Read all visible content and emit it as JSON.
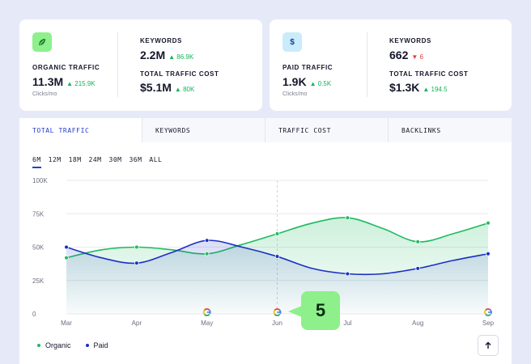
{
  "organic_card": {
    "icon": "leaf-icon",
    "traffic_label": "ORGANIC TRAFFIC",
    "traffic_value": "11.3M",
    "traffic_delta": "215.9K",
    "traffic_unit": "Clicks/mo",
    "keywords_label": "KEYWORDS",
    "keywords_value": "2.2M",
    "keywords_delta": "86.9K",
    "cost_label": "TOTAL TRAFFIC COST",
    "cost_value": "$5.1M",
    "cost_delta": "80K"
  },
  "paid_card": {
    "icon": "dollar-icon",
    "traffic_label": "PAID TRAFFIC",
    "traffic_value": "1.9K",
    "traffic_delta": "0.5K",
    "traffic_unit": "Clicks/mo",
    "keywords_label": "KEYWORDS",
    "keywords_value": "662",
    "keywords_delta": "6",
    "cost_label": "TOTAL TRAFFIC COST",
    "cost_value": "$1.3K",
    "cost_delta": "194.5"
  },
  "tabs": [
    {
      "label": "TOTAL TRAFFIC",
      "active": true
    },
    {
      "label": "KEYWORDS",
      "active": false
    },
    {
      "label": "TRAFFIC COST",
      "active": false
    },
    {
      "label": "BACKLINKS",
      "active": false
    }
  ],
  "ranges": [
    "6M",
    "12M",
    "18M",
    "24M",
    "30M",
    "36M",
    "ALL"
  ],
  "active_range": "6M",
  "badge": "5",
  "colors": {
    "organic": "#1fba5f",
    "paid": "#1a2fc4",
    "accent": "#2340c8",
    "up": "#14b35a",
    "down": "#e23b3b"
  },
  "chart_data": {
    "type": "line",
    "categories": [
      "Mar",
      "Apr",
      "May",
      "Jun",
      "Jul",
      "Aug",
      "Sep"
    ],
    "x": [
      0,
      0.5,
      1,
      1.5,
      2,
      2.5,
      3,
      3.5,
      4,
      4.5,
      5,
      5.5,
      6
    ],
    "series": [
      {
        "name": "Organic",
        "values": [
          42,
          48,
          50,
          48,
          45,
          52,
          60,
          68,
          72,
          64,
          54,
          60,
          68
        ]
      },
      {
        "name": "Paid",
        "values": [
          50,
          42,
          38,
          46,
          55,
          50,
          43,
          34,
          30,
          30,
          34,
          40,
          45
        ]
      }
    ],
    "yticks": [
      "0",
      "25K",
      "50K",
      "75K",
      "100K"
    ],
    "ylim": [
      0,
      100
    ],
    "grid": true,
    "legend": "bottom-left",
    "annotated_months": [
      "May",
      "Jun",
      "Sep"
    ],
    "annotation_icon": "google-icon",
    "highlight_month": "Jun"
  }
}
